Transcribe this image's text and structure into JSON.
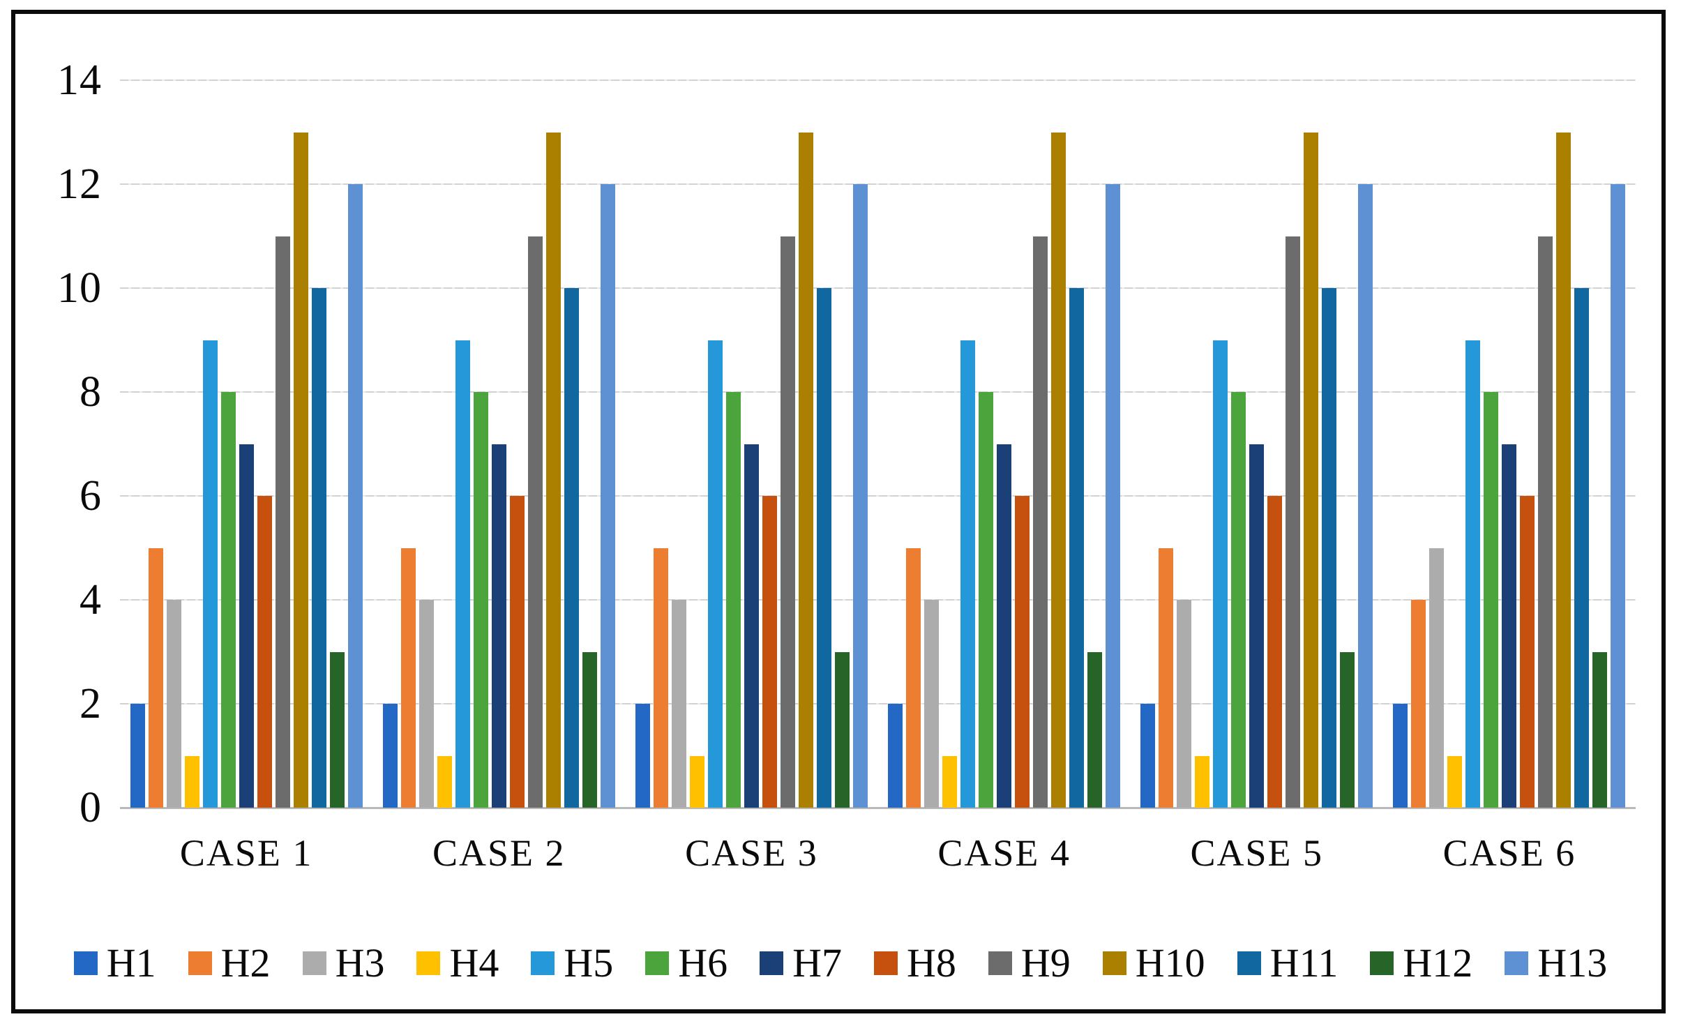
{
  "chart_data": {
    "type": "bar",
    "categories": [
      "CASE 1",
      "CASE 2",
      "CASE 3",
      "CASE 4",
      "CASE 5",
      "CASE 6"
    ],
    "ylim": [
      0,
      14
    ],
    "yticks": [
      0,
      2,
      4,
      6,
      8,
      10,
      12,
      14
    ],
    "grid": true,
    "legend_position": "bottom",
    "series": [
      {
        "name": "H1",
        "color": "#2368C4",
        "values": [
          2,
          2,
          2,
          2,
          2,
          2
        ]
      },
      {
        "name": "H2",
        "color": "#ED7D31",
        "values": [
          5,
          5,
          5,
          5,
          5,
          4
        ]
      },
      {
        "name": "H3",
        "color": "#ACACAC",
        "values": [
          4,
          4,
          4,
          4,
          4,
          5
        ]
      },
      {
        "name": "H4",
        "color": "#FFC000",
        "values": [
          1,
          1,
          1,
          1,
          1,
          1
        ]
      },
      {
        "name": "H5",
        "color": "#2598DA",
        "values": [
          9,
          9,
          9,
          9,
          9,
          9
        ]
      },
      {
        "name": "H6",
        "color": "#4CA53C",
        "values": [
          8,
          8,
          8,
          8,
          8,
          8
        ]
      },
      {
        "name": "H7",
        "color": "#1B4077",
        "values": [
          7,
          7,
          7,
          7,
          7,
          7
        ]
      },
      {
        "name": "H8",
        "color": "#C6510E",
        "values": [
          6,
          6,
          6,
          6,
          6,
          6
        ]
      },
      {
        "name": "H9",
        "color": "#6C6C6C",
        "values": [
          11,
          11,
          11,
          11,
          11,
          11
        ]
      },
      {
        "name": "H10",
        "color": "#AB8000",
        "values": [
          13,
          13,
          13,
          13,
          13,
          13
        ]
      },
      {
        "name": "H11",
        "color": "#11679F",
        "values": [
          10,
          10,
          10,
          10,
          10,
          10
        ]
      },
      {
        "name": "H12",
        "color": "#276427",
        "values": [
          3,
          3,
          3,
          3,
          3,
          3
        ]
      },
      {
        "name": "H13",
        "color": "#5E91D3",
        "values": [
          12,
          12,
          12,
          12,
          12,
          12
        ]
      }
    ],
    "colors": {
      "gridline": "#d6d6d6",
      "axis_line": "#b9b9b9",
      "frame_border": "#0b0b0b",
      "text": "#0a0a0a",
      "background": "#ffffff"
    }
  }
}
